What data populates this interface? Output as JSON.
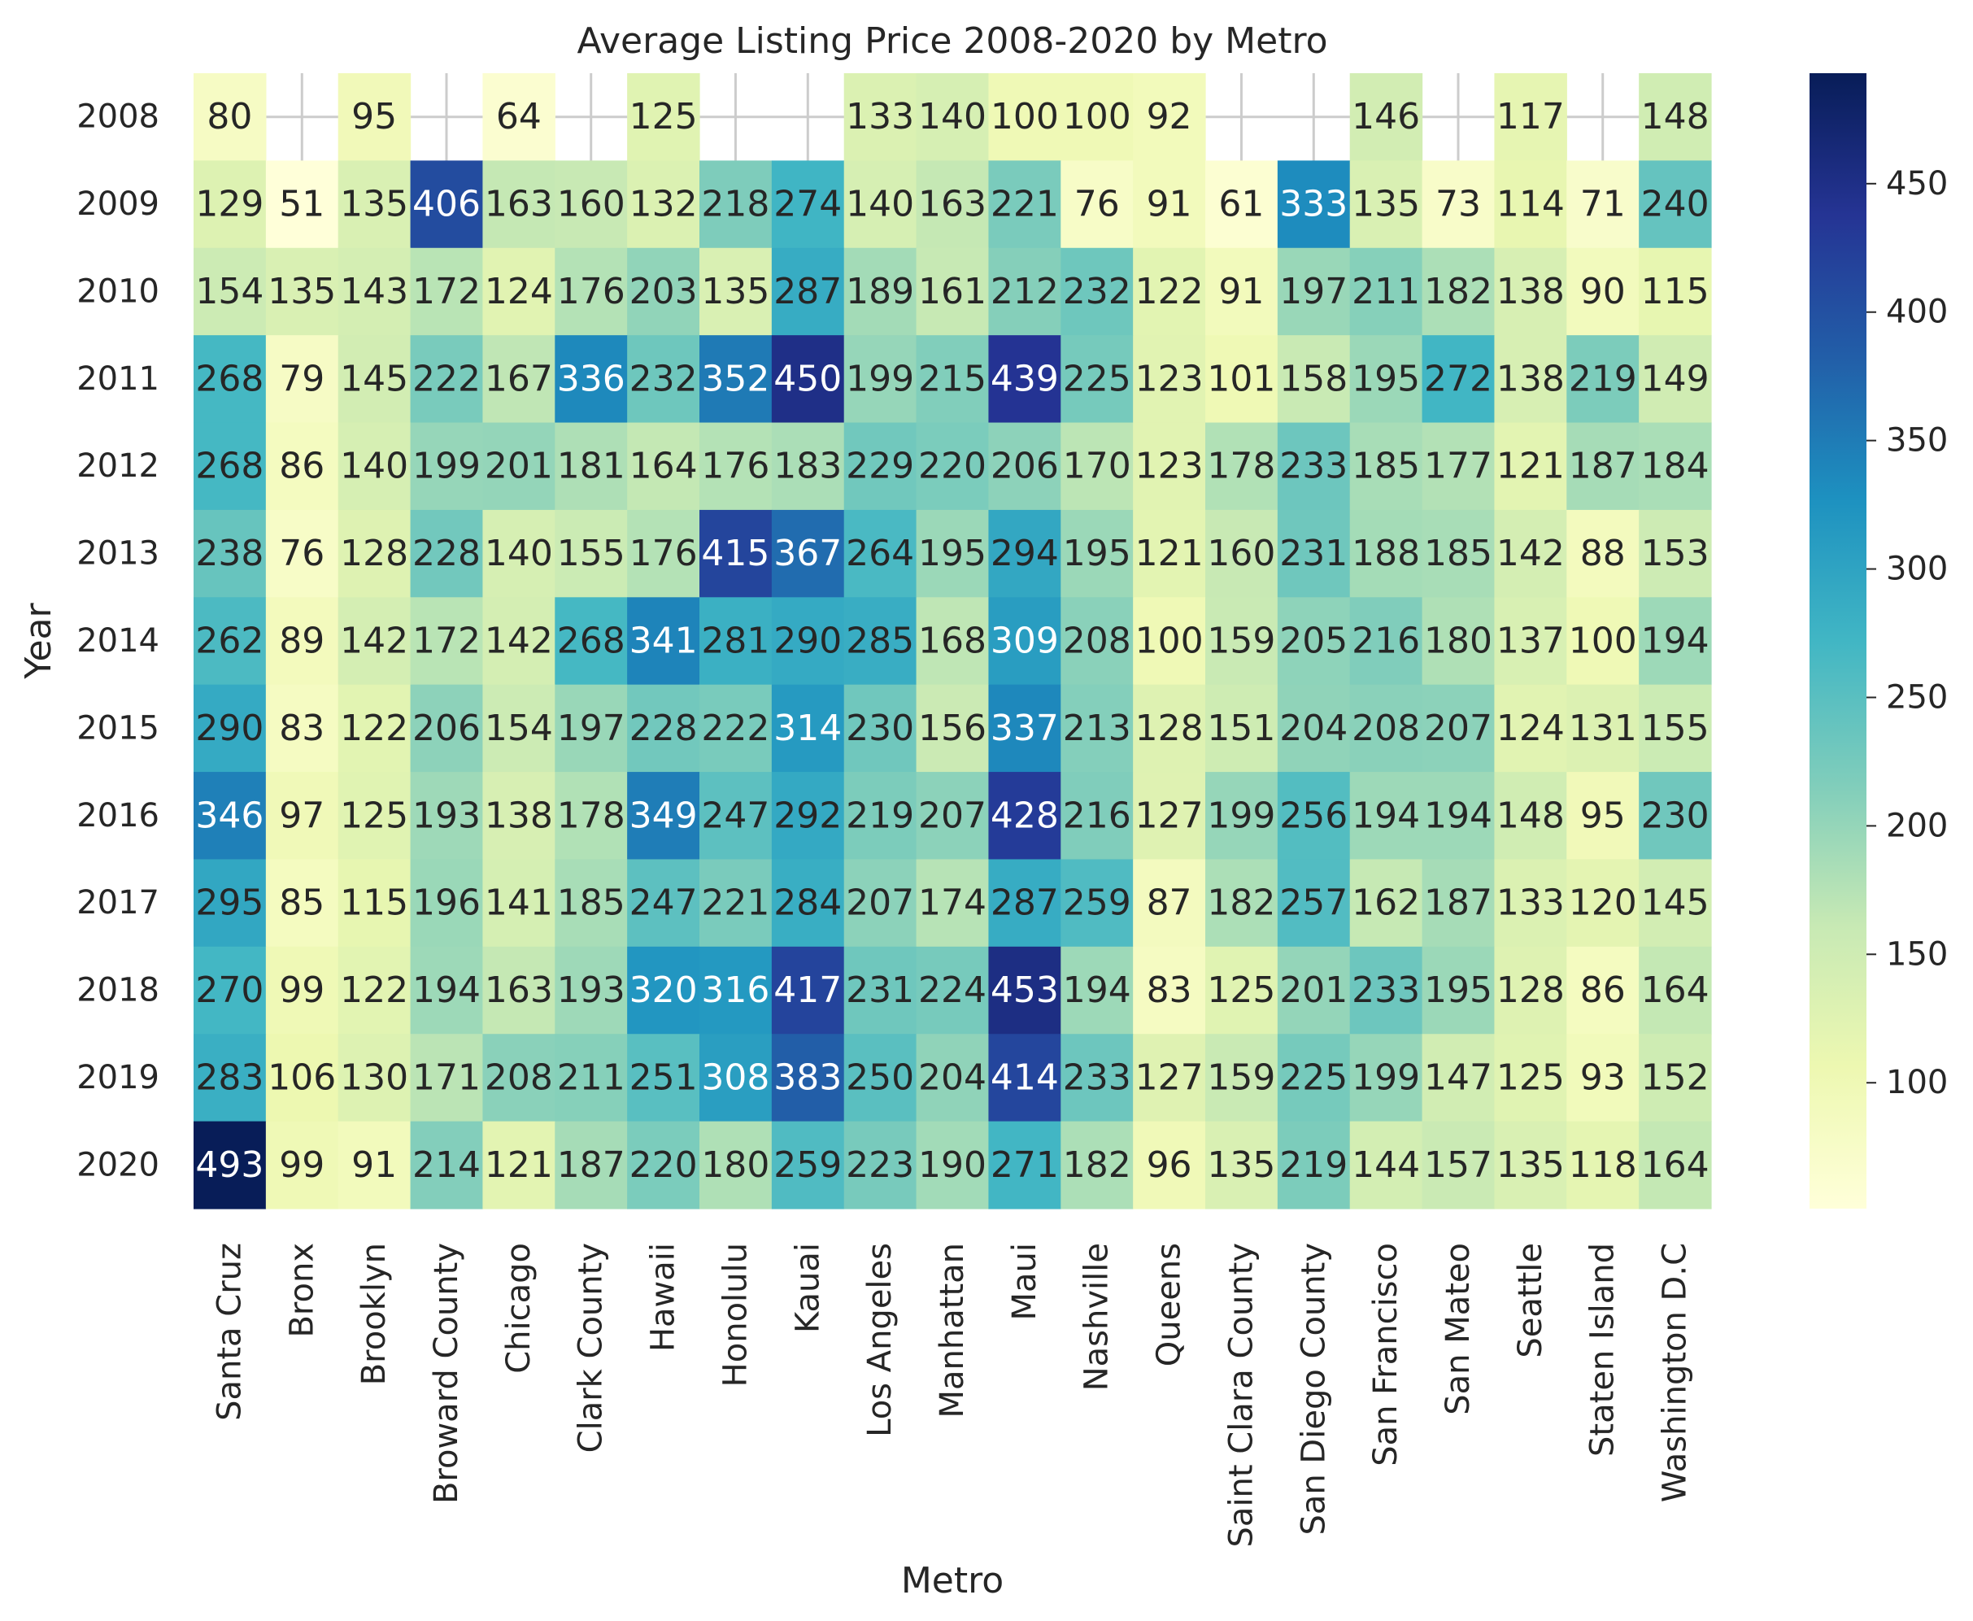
{
  "chart_data": {
    "type": "heatmap",
    "title": "Average Listing Price 2008-2020 by Metro",
    "xlabel": "Metro",
    "ylabel": "Year",
    "x": [
      "Santa Cruz",
      "Bronx",
      "Brooklyn",
      "Broward County",
      "Chicago",
      "Clark County",
      "Hawaii",
      "Honolulu",
      "Kauai",
      "Los Angeles",
      "Manhattan",
      "Maui",
      "Nashville",
      "Queens",
      "Saint Clara County",
      "San Diego County",
      "San Francisco",
      "San Mateo",
      "Seattle",
      "Staten Island",
      "Washington D.C"
    ],
    "y": [
      "2008",
      "2009",
      "2010",
      "2011",
      "2012",
      "2013",
      "2014",
      "2015",
      "2016",
      "2017",
      "2018",
      "2019",
      "2020"
    ],
    "values": [
      [
        80,
        null,
        95,
        null,
        64,
        null,
        125,
        null,
        null,
        133,
        140,
        100,
        100,
        92,
        null,
        null,
        146,
        null,
        117,
        null,
        148
      ],
      [
        129,
        51,
        135,
        406,
        163,
        160,
        132,
        218,
        274,
        140,
        163,
        221,
        76,
        91,
        61,
        333,
        135,
        73,
        114,
        71,
        240
      ],
      [
        154,
        135,
        143,
        172,
        124,
        176,
        203,
        135,
        287,
        189,
        161,
        212,
        232,
        122,
        91,
        197,
        211,
        182,
        138,
        90,
        115
      ],
      [
        268,
        79,
        145,
        222,
        167,
        336,
        232,
        352,
        450,
        199,
        215,
        439,
        225,
        123,
        101,
        158,
        195,
        272,
        138,
        219,
        149
      ],
      [
        268,
        86,
        140,
        199,
        201,
        181,
        164,
        176,
        183,
        229,
        220,
        206,
        170,
        123,
        178,
        233,
        185,
        177,
        121,
        187,
        184
      ],
      [
        238,
        76,
        128,
        228,
        140,
        155,
        176,
        415,
        367,
        264,
        195,
        294,
        195,
        121,
        160,
        231,
        188,
        185,
        142,
        88,
        153
      ],
      [
        262,
        89,
        142,
        172,
        142,
        268,
        341,
        281,
        290,
        285,
        168,
        309,
        208,
        100,
        159,
        205,
        216,
        180,
        137,
        100,
        194
      ],
      [
        290,
        83,
        122,
        206,
        154,
        197,
        228,
        222,
        314,
        230,
        156,
        337,
        213,
        128,
        151,
        204,
        208,
        207,
        124,
        131,
        155
      ],
      [
        346,
        97,
        125,
        193,
        138,
        178,
        349,
        247,
        292,
        219,
        207,
        428,
        216,
        127,
        199,
        256,
        194,
        194,
        148,
        95,
        230
      ],
      [
        295,
        85,
        115,
        196,
        141,
        185,
        247,
        221,
        284,
        207,
        174,
        287,
        259,
        87,
        182,
        257,
        162,
        187,
        133,
        120,
        145
      ],
      [
        270,
        99,
        122,
        194,
        163,
        193,
        320,
        316,
        417,
        231,
        224,
        453,
        194,
        83,
        125,
        201,
        233,
        195,
        128,
        86,
        164
      ],
      [
        283,
        106,
        130,
        171,
        208,
        211,
        251,
        308,
        383,
        250,
        204,
        414,
        233,
        127,
        159,
        225,
        199,
        147,
        125,
        93,
        152
      ],
      [
        493,
        99,
        91,
        214,
        121,
        187,
        220,
        180,
        259,
        223,
        190,
        271,
        182,
        96,
        135,
        219,
        144,
        157,
        135,
        118,
        164
      ]
    ],
    "colormap": "YlGnBu",
    "vmin": 51,
    "vmax": 493,
    "colorbar_ticks": [
      100,
      150,
      200,
      250,
      300,
      350,
      400,
      450
    ],
    "grid": true,
    "missing_cells": "blank"
  }
}
